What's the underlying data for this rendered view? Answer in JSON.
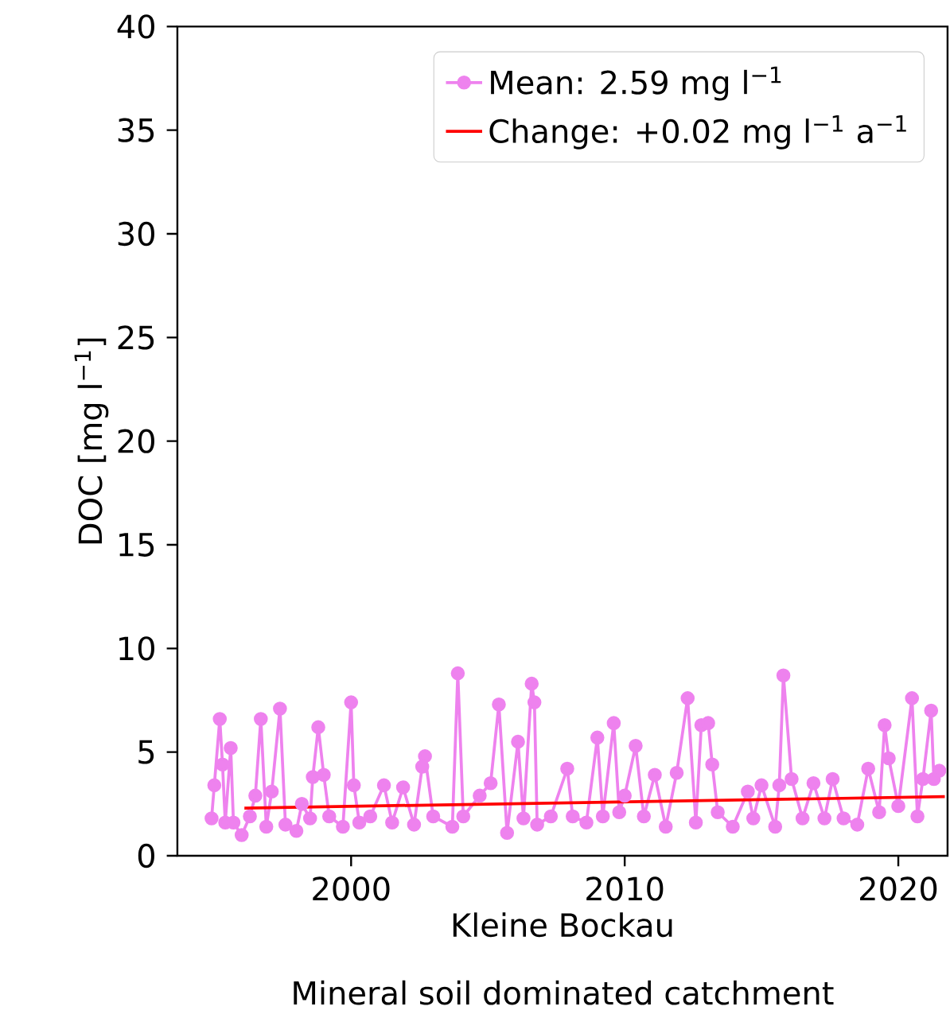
{
  "chart_data": {
    "type": "line",
    "xlabel": "Kleine Bockau",
    "annotations": [
      "Mineral soil dominated catchment"
    ],
    "ylabel": "DOC [mg l$^{−1}$]",
    "xlim": [
      1993.65,
      2021.8
    ],
    "xticks": [
      2000,
      2010,
      2020
    ],
    "ylim": [
      0,
      40
    ],
    "yticks": [
      0,
      5,
      10,
      15,
      20,
      25,
      30,
      35,
      40
    ],
    "legend": "top right",
    "grid": false,
    "series": [
      {
        "name": "Mean: 2.59 mg l$^{−1}$",
        "color": "#ee82ee",
        "marker": "circle",
        "x": [
          1994.9,
          1995.0,
          1995.2,
          1995.3,
          1995.4,
          1995.6,
          1995.7,
          1996.0,
          1996.3,
          1996.5,
          1996.7,
          1996.9,
          1997.1,
          1997.4,
          1997.6,
          1998.0,
          1998.2,
          1998.5,
          1998.6,
          1998.8,
          1999.0,
          1999.2,
          1999.7,
          2000.0,
          2000.1,
          2000.3,
          2000.7,
          2001.2,
          2001.5,
          2001.9,
          2002.3,
          2002.6,
          2002.7,
          2003.0,
          2003.7,
          2003.9,
          2004.1,
          2004.7,
          2005.1,
          2005.4,
          2005.7,
          2006.1,
          2006.3,
          2006.6,
          2006.7,
          2006.8,
          2007.3,
          2007.9,
          2008.1,
          2008.6,
          2009.0,
          2009.2,
          2009.6,
          2009.8,
          2010.0,
          2010.4,
          2010.7,
          2011.1,
          2011.5,
          2011.9,
          2012.3,
          2012.6,
          2012.8,
          2013.05,
          2013.2,
          2013.4,
          2013.95,
          2014.5,
          2014.7,
          2015.0,
          2015.5,
          2015.65,
          2015.8,
          2016.1,
          2016.5,
          2016.9,
          2017.3,
          2017.6,
          2018.0,
          2018.5,
          2018.9,
          2019.3,
          2019.5,
          2019.65,
          2020.0,
          2020.5,
          2020.7,
          2020.9,
          2021.2,
          2021.3,
          2021.5
        ],
        "values": [
          1.8,
          3.4,
          6.6,
          4.4,
          1.6,
          5.2,
          1.6,
          1.0,
          1.9,
          2.9,
          6.6,
          1.4,
          3.1,
          7.1,
          1.5,
          1.2,
          2.5,
          1.8,
          3.8,
          6.2,
          3.9,
          1.9,
          1.4,
          7.4,
          3.4,
          1.6,
          1.9,
          3.4,
          1.6,
          3.3,
          1.5,
          4.3,
          4.8,
          1.9,
          1.4,
          8.8,
          1.9,
          2.9,
          3.5,
          7.3,
          1.1,
          5.5,
          1.8,
          8.3,
          7.4,
          1.5,
          1.9,
          4.2,
          1.9,
          1.6,
          5.7,
          1.9,
          6.4,
          2.1,
          2.9,
          5.3,
          1.9,
          3.9,
          1.4,
          4.0,
          7.6,
          1.6,
          6.3,
          6.4,
          4.4,
          2.1,
          1.4,
          3.1,
          1.8,
          3.4,
          1.4,
          3.4,
          8.7,
          3.7,
          1.8,
          3.5,
          1.8,
          3.7,
          1.8,
          1.5,
          4.2,
          2.1,
          6.3,
          4.7,
          2.4,
          7.6,
          1.9,
          3.7,
          7.0,
          3.7,
          4.1
        ]
      },
      {
        "name": "Change: +0.02 mg l$^{−1}$ a$^{−1}$",
        "color": "#ff0000",
        "marker": "none",
        "x": [
          1996.1,
          2021.7
        ],
        "values": [
          2.3,
          2.85
        ]
      }
    ]
  }
}
